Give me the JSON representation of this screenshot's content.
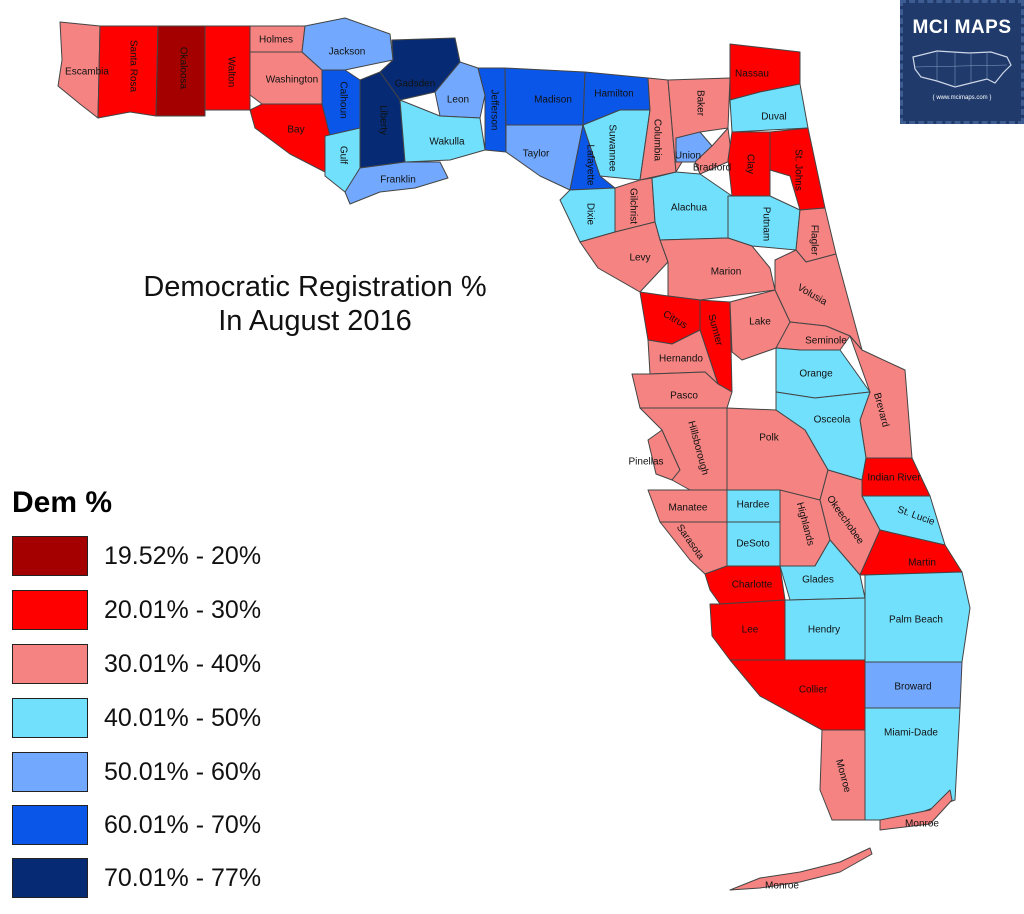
{
  "title_line1": "Democratic Registration %",
  "title_line2": "In August 2016",
  "logo": {
    "title": "MCI MAPS",
    "url": "{ www.mcimaps.com }"
  },
  "legend": {
    "title": "Dem %",
    "classes": [
      {
        "label": "19.52% - 20%",
        "color": "#a50000"
      },
      {
        "label": "20.01% - 30%",
        "color": "#ff0000"
      },
      {
        "label": "30.01% - 40%",
        "color": "#f48382"
      },
      {
        "label": "40.01% - 50%",
        "color": "#71e0fd"
      },
      {
        "label": "50.01% - 60%",
        "color": "#72a9ff"
      },
      {
        "label": "60.01% - 70%",
        "color": "#0a56e8"
      },
      {
        "label": "70.01% - 77%",
        "color": "#062b74"
      }
    ]
  },
  "counties": [
    {
      "name": "Escambia",
      "class": 2
    },
    {
      "name": "Santa Rosa",
      "class": 1
    },
    {
      "name": "Okaloosa",
      "class": 0
    },
    {
      "name": "Walton",
      "class": 1
    },
    {
      "name": "Holmes",
      "class": 2
    },
    {
      "name": "Washington",
      "class": 2
    },
    {
      "name": "Bay",
      "class": 1
    },
    {
      "name": "Jackson",
      "class": 4
    },
    {
      "name": "Calhoun",
      "class": 5
    },
    {
      "name": "Gulf",
      "class": 3
    },
    {
      "name": "Gadsden",
      "class": 6
    },
    {
      "name": "Liberty",
      "class": 6
    },
    {
      "name": "Franklin",
      "class": 4
    },
    {
      "name": "Leon",
      "class": 4
    },
    {
      "name": "Wakulla",
      "class": 3
    },
    {
      "name": "Jefferson",
      "class": 5
    },
    {
      "name": "Madison",
      "class": 5
    },
    {
      "name": "Taylor",
      "class": 4
    },
    {
      "name": "Hamilton",
      "class": 5
    },
    {
      "name": "Suwannee",
      "class": 3
    },
    {
      "name": "Lafayette",
      "class": 5
    },
    {
      "name": "Dixie",
      "class": 3
    },
    {
      "name": "Columbia",
      "class": 2
    },
    {
      "name": "Baker",
      "class": 2
    },
    {
      "name": "Nassau",
      "class": 1
    },
    {
      "name": "Duval",
      "class": 3
    },
    {
      "name": "Union",
      "class": 4
    },
    {
      "name": "Bradford",
      "class": 2
    },
    {
      "name": "Clay",
      "class": 1
    },
    {
      "name": "St. Johns",
      "class": 1
    },
    {
      "name": "Gilchrist",
      "class": 2
    },
    {
      "name": "Alachua",
      "class": 3
    },
    {
      "name": "Putnam",
      "class": 3
    },
    {
      "name": "Flagler",
      "class": 2
    },
    {
      "name": "Levy",
      "class": 2
    },
    {
      "name": "Marion",
      "class": 2
    },
    {
      "name": "Volusia",
      "class": 2
    },
    {
      "name": "Citrus",
      "class": 1
    },
    {
      "name": "Sumter",
      "class": 1
    },
    {
      "name": "Lake",
      "class": 2
    },
    {
      "name": "Seminole",
      "class": 2
    },
    {
      "name": "Hernando",
      "class": 2
    },
    {
      "name": "Orange",
      "class": 3
    },
    {
      "name": "Brevard",
      "class": 2
    },
    {
      "name": "Pasco",
      "class": 2
    },
    {
      "name": "Osceola",
      "class": 3
    },
    {
      "name": "Pinellas",
      "class": 2
    },
    {
      "name": "Hillsborough",
      "class": 2
    },
    {
      "name": "Polk",
      "class": 2
    },
    {
      "name": "Indian River",
      "class": 1
    },
    {
      "name": "Manatee",
      "class": 2
    },
    {
      "name": "Hardee",
      "class": 3
    },
    {
      "name": "Highlands",
      "class": 2
    },
    {
      "name": "Okeechobee",
      "class": 2
    },
    {
      "name": "St. Lucie",
      "class": 3
    },
    {
      "name": "Sarasota",
      "class": 2
    },
    {
      "name": "DeSoto",
      "class": 3
    },
    {
      "name": "Martin",
      "class": 1
    },
    {
      "name": "Charlotte",
      "class": 1
    },
    {
      "name": "Glades",
      "class": 3
    },
    {
      "name": "Lee",
      "class": 1
    },
    {
      "name": "Hendry",
      "class": 3
    },
    {
      "name": "Palm Beach",
      "class": 3
    },
    {
      "name": "Collier",
      "class": 1
    },
    {
      "name": "Broward",
      "class": 4
    },
    {
      "name": "Miami-Dade",
      "class": 3
    },
    {
      "name": "Monroe",
      "class": 2
    },
    {
      "name": "Monroe",
      "class": 2
    },
    {
      "name": "Monroe",
      "class": 2
    }
  ]
}
